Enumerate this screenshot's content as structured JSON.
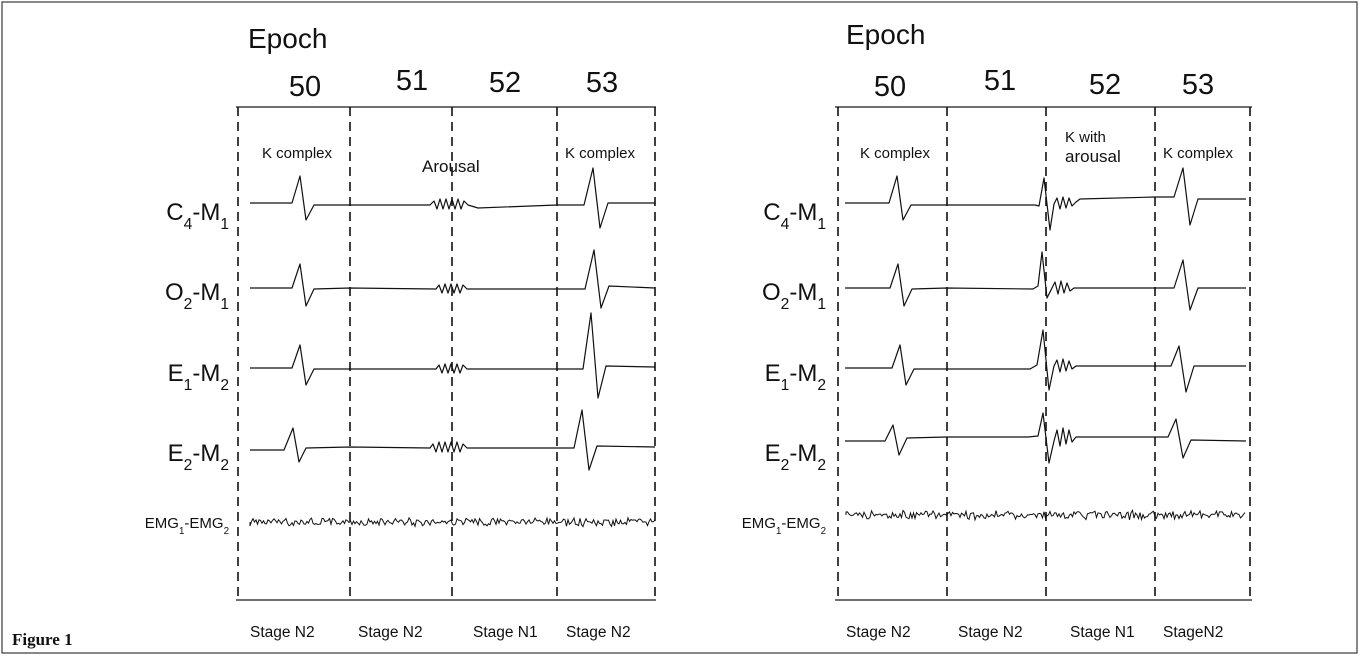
{
  "figure": {
    "caption": "Figure 1",
    "panels": [
      {
        "id": "left",
        "epoch_label": "Epoch",
        "epochs": [
          "50",
          "51",
          "52",
          "53"
        ],
        "annotations": [
          {
            "epoch": 0,
            "lines": [
              "K complex"
            ]
          },
          {
            "epoch": 1,
            "lines": [
              "Arousal"
            ]
          },
          {
            "epoch": 3,
            "lines": [
              "K complex"
            ]
          }
        ],
        "channels": [
          {
            "label": "C4-M1",
            "main": "C",
            "sub1": "4",
            "mid": "-M",
            "sub2": "1"
          },
          {
            "label": "O2-M1",
            "main": "O",
            "sub1": "2",
            "mid": "-M",
            "sub2": "1"
          },
          {
            "label": "E1-M2",
            "main": "E",
            "sub1": "1",
            "mid": "-M",
            "sub2": "2"
          },
          {
            "label": "E2-M2",
            "main": "E",
            "sub1": "2",
            "mid": "-M",
            "sub2": "2"
          }
        ],
        "emg": {
          "label": "EMG1-EMG2",
          "main1": "EMG",
          "sub1": "1",
          "mid": "-EMG",
          "sub2": "2"
        },
        "stages": [
          "Stage N2",
          "Stage N2",
          "Stage N1",
          "Stage N2"
        ]
      },
      {
        "id": "right",
        "epoch_label": "Epoch",
        "epochs": [
          "50",
          "51",
          "52",
          "53"
        ],
        "annotations": [
          {
            "epoch": 0,
            "lines": [
              "K complex"
            ]
          },
          {
            "epoch": 2,
            "lines": [
              "K with",
              "arousal"
            ]
          },
          {
            "epoch": 3,
            "lines": [
              "K complex"
            ]
          }
        ],
        "channels": [
          {
            "label": "C4-M1",
            "main": "C",
            "sub1": "4",
            "mid": "-M",
            "sub2": "1"
          },
          {
            "label": "O2-M1",
            "main": "O",
            "sub1": "2",
            "mid": "-M",
            "sub2": "1"
          },
          {
            "label": "E1-M2",
            "main": "E",
            "sub1": "1",
            "mid": "-M",
            "sub2": "2"
          },
          {
            "label": "E2-M2",
            "main": "E",
            "sub1": "2",
            "mid": "-M",
            "sub2": "2"
          }
        ],
        "emg": {
          "label": "EMG1-EMG2",
          "main1": "EMG",
          "sub1": "1",
          "mid": "-EMG",
          "sub2": "2"
        },
        "stages": [
          "Stage N2",
          "Stage N2",
          "Stage N1",
          "StageN2"
        ]
      }
    ]
  }
}
